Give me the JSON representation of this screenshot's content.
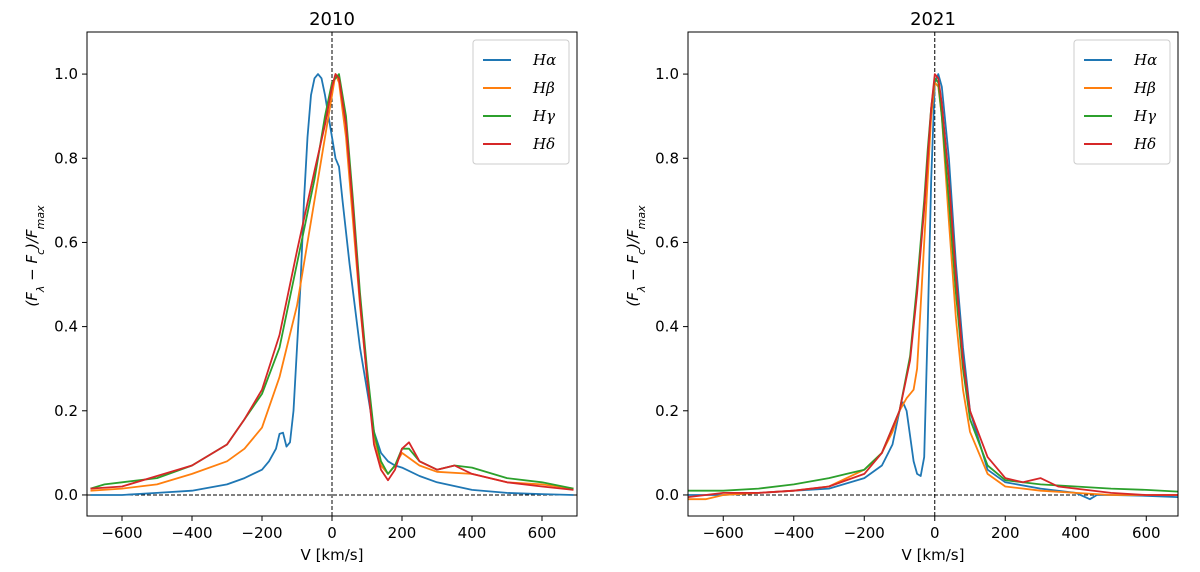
{
  "chart_data": [
    {
      "type": "line",
      "title": "2010",
      "xlabel": "V [km/s]",
      "ylabel_parts": [
        "(F",
        "λ",
        " − F",
        "c",
        ")/F",
        "max"
      ],
      "xlim": [
        -700,
        700
      ],
      "ylim": [
        -0.05,
        1.1
      ],
      "xticks": [
        -600,
        -400,
        -200,
        0,
        200,
        400,
        600
      ],
      "xtick_labels": [
        "−600",
        "−400",
        "−200",
        "0",
        "200",
        "400",
        "600"
      ],
      "yticks": [
        0.0,
        0.2,
        0.4,
        0.6,
        0.8,
        1.0
      ],
      "ytick_labels": [
        "0.0",
        "0.2",
        "0.4",
        "0.6",
        "0.8",
        "1.0"
      ],
      "legend_position": "top-right",
      "reference_lines": [
        {
          "axis": "x",
          "value": 0,
          "style": "dashed"
        },
        {
          "axis": "y",
          "value": 0,
          "style": "dashed"
        }
      ],
      "series": [
        {
          "name": "Hα",
          "color": "#1f77b4",
          "x": [
            -690,
            -600,
            -500,
            -400,
            -300,
            -250,
            -200,
            -180,
            -160,
            -150,
            -140,
            -130,
            -120,
            -110,
            -100,
            -90,
            -80,
            -70,
            -60,
            -50,
            -40,
            -30,
            -20,
            -10,
            0,
            10,
            20,
            30,
            50,
            80,
            100,
            120,
            140,
            160,
            180,
            200,
            250,
            300,
            400,
            500,
            600,
            690
          ],
          "y": [
            0.0,
            0.0,
            0.005,
            0.01,
            0.025,
            0.04,
            0.06,
            0.08,
            0.11,
            0.145,
            0.148,
            0.115,
            0.125,
            0.2,
            0.35,
            0.5,
            0.7,
            0.85,
            0.95,
            0.99,
            1.0,
            0.99,
            0.95,
            0.9,
            0.85,
            0.8,
            0.78,
            0.7,
            0.55,
            0.35,
            0.25,
            0.15,
            0.1,
            0.08,
            0.07,
            0.065,
            0.045,
            0.03,
            0.012,
            0.005,
            0.002,
            0.0
          ]
        },
        {
          "name": "Hβ",
          "color": "#ff7f0e",
          "x": [
            -690,
            -600,
            -500,
            -400,
            -300,
            -250,
            -200,
            -150,
            -100,
            -50,
            -20,
            0,
            10,
            20,
            40,
            60,
            80,
            100,
            120,
            140,
            160,
            180,
            200,
            250,
            300,
            400,
            500,
            600,
            690
          ],
          "y": [
            0.01,
            0.015,
            0.025,
            0.05,
            0.08,
            0.11,
            0.16,
            0.28,
            0.45,
            0.7,
            0.85,
            0.95,
            1.0,
            0.98,
            0.85,
            0.65,
            0.45,
            0.28,
            0.14,
            0.07,
            0.05,
            0.07,
            0.1,
            0.07,
            0.055,
            0.05,
            0.03,
            0.025,
            0.015
          ]
        },
        {
          "name": "Hγ",
          "color": "#2ca02c",
          "x": [
            -690,
            -650,
            -600,
            -500,
            -400,
            -300,
            -250,
            -200,
            -150,
            -100,
            -50,
            -20,
            0,
            10,
            20,
            40,
            60,
            80,
            100,
            120,
            140,
            160,
            180,
            200,
            220,
            250,
            300,
            350,
            400,
            500,
            600,
            690
          ],
          "y": [
            0.015,
            0.025,
            0.03,
            0.04,
            0.07,
            0.12,
            0.18,
            0.24,
            0.35,
            0.55,
            0.75,
            0.9,
            0.98,
            0.99,
            1.0,
            0.9,
            0.7,
            0.48,
            0.3,
            0.15,
            0.08,
            0.05,
            0.07,
            0.11,
            0.11,
            0.08,
            0.06,
            0.07,
            0.065,
            0.04,
            0.03,
            0.015
          ]
        },
        {
          "name": "Hδ",
          "color": "#d62728",
          "x": [
            -690,
            -600,
            -500,
            -400,
            -300,
            -250,
            -200,
            -150,
            -100,
            -50,
            -20,
            0,
            10,
            20,
            40,
            60,
            80,
            100,
            120,
            140,
            160,
            180,
            200,
            220,
            250,
            300,
            350,
            400,
            500,
            600,
            690
          ],
          "y": [
            0.015,
            0.02,
            0.045,
            0.07,
            0.12,
            0.18,
            0.25,
            0.38,
            0.58,
            0.77,
            0.88,
            0.97,
            1.0,
            0.99,
            0.88,
            0.68,
            0.46,
            0.28,
            0.12,
            0.06,
            0.035,
            0.06,
            0.11,
            0.125,
            0.08,
            0.06,
            0.07,
            0.05,
            0.03,
            0.02,
            0.012
          ]
        }
      ]
    },
    {
      "type": "line",
      "title": "2021",
      "xlabel": "V [km/s]",
      "ylabel_parts": [
        "(F",
        "λ",
        " − F",
        "c",
        ")/F",
        "max"
      ],
      "xlim": [
        -700,
        690
      ],
      "ylim": [
        -0.05,
        1.1
      ],
      "xticks": [
        -600,
        -400,
        -200,
        0,
        200,
        400,
        600
      ],
      "xtick_labels": [
        "−600",
        "−400",
        "−200",
        "0",
        "200",
        "400",
        "600"
      ],
      "yticks": [
        0.0,
        0.2,
        0.4,
        0.6,
        0.8,
        1.0
      ],
      "ytick_labels": [
        "0.0",
        "0.2",
        "0.4",
        "0.6",
        "0.8",
        "1.0"
      ],
      "legend_position": "top-right",
      "reference_lines": [
        {
          "axis": "x",
          "value": 0,
          "style": "dashed"
        },
        {
          "axis": "y",
          "value": 0,
          "style": "dashed"
        }
      ],
      "series": [
        {
          "name": "Hα",
          "color": "#1f77b4",
          "x": [
            -700,
            -600,
            -500,
            -400,
            -300,
            -200,
            -150,
            -120,
            -100,
            -90,
            -80,
            -70,
            -60,
            -50,
            -40,
            -30,
            -20,
            -10,
            0,
            10,
            20,
            40,
            60,
            80,
            100,
            150,
            200,
            300,
            400,
            440,
            460,
            500,
            600,
            690
          ],
          "y": [
            0.0,
            0.0,
            0.005,
            0.01,
            0.015,
            0.04,
            0.07,
            0.12,
            0.2,
            0.22,
            0.2,
            0.14,
            0.08,
            0.05,
            0.045,
            0.09,
            0.4,
            0.75,
            0.98,
            1.0,
            0.97,
            0.8,
            0.55,
            0.35,
            0.2,
            0.06,
            0.03,
            0.015,
            0.005,
            -0.01,
            0.0,
            0.0,
            -0.002,
            -0.005
          ]
        },
        {
          "name": "Hβ",
          "color": "#ff7f0e",
          "x": [
            -700,
            -650,
            -600,
            -500,
            -400,
            -300,
            -200,
            -150,
            -120,
            -100,
            -80,
            -70,
            -60,
            -50,
            -40,
            -30,
            -20,
            -10,
            0,
            10,
            20,
            40,
            60,
            80,
            100,
            150,
            200,
            300,
            400,
            500,
            600,
            690
          ],
          "y": [
            -0.01,
            -0.01,
            0.0,
            0.005,
            0.01,
            0.02,
            0.06,
            0.1,
            0.15,
            0.2,
            0.23,
            0.24,
            0.25,
            0.3,
            0.45,
            0.6,
            0.75,
            0.9,
            0.98,
            0.97,
            0.9,
            0.65,
            0.42,
            0.25,
            0.15,
            0.05,
            0.02,
            0.01,
            0.005,
            0.0,
            0.0,
            0.0
          ]
        },
        {
          "name": "Hγ",
          "color": "#2ca02c",
          "x": [
            -700,
            -600,
            -500,
            -400,
            -300,
            -250,
            -200,
            -150,
            -100,
            -70,
            -50,
            -30,
            -20,
            -10,
            0,
            10,
            20,
            40,
            60,
            80,
            100,
            150,
            200,
            300,
            400,
            500,
            600,
            690
          ],
          "y": [
            0.01,
            0.01,
            0.015,
            0.025,
            0.04,
            0.05,
            0.06,
            0.1,
            0.2,
            0.33,
            0.5,
            0.7,
            0.82,
            0.92,
            0.99,
            0.98,
            0.9,
            0.7,
            0.48,
            0.3,
            0.18,
            0.07,
            0.035,
            0.025,
            0.02,
            0.015,
            0.012,
            0.008
          ]
        },
        {
          "name": "Hδ",
          "color": "#d62728",
          "x": [
            -700,
            -600,
            -500,
            -400,
            -300,
            -200,
            -150,
            -100,
            -70,
            -50,
            -30,
            -20,
            -10,
            0,
            10,
            20,
            40,
            60,
            80,
            100,
            150,
            200,
            250,
            300,
            350,
            400,
            500,
            600,
            690
          ],
          "y": [
            -0.005,
            0.005,
            0.005,
            0.01,
            0.02,
            0.05,
            0.1,
            0.2,
            0.32,
            0.48,
            0.68,
            0.8,
            0.92,
            1.0,
            0.99,
            0.93,
            0.75,
            0.52,
            0.32,
            0.2,
            0.09,
            0.04,
            0.03,
            0.04,
            0.02,
            0.015,
            0.005,
            0.0,
            0.0
          ]
        }
      ]
    }
  ]
}
